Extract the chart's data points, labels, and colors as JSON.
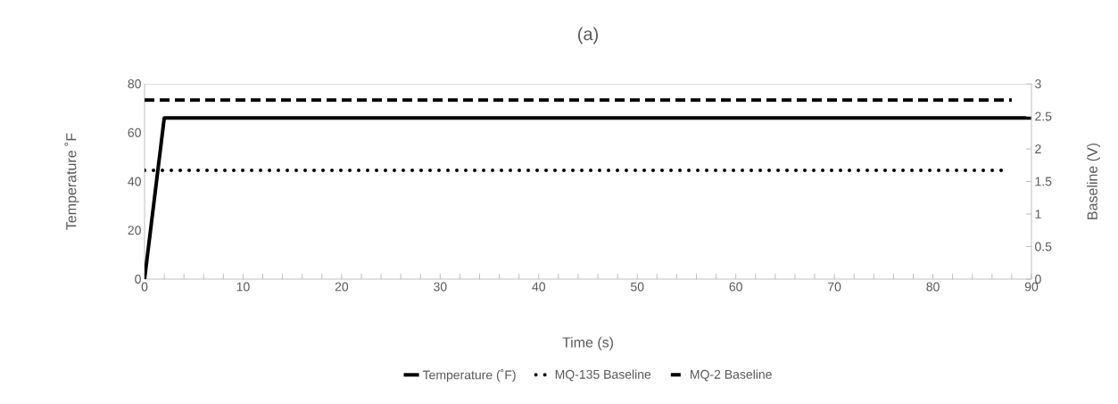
{
  "chart_data": {
    "type": "line",
    "title": "(a)",
    "xlabel": "Time (s)",
    "ylabel": "Temperature ˚F",
    "y2label": "Baseline (V)",
    "xlim": [
      0,
      90
    ],
    "ylim": [
      0,
      80
    ],
    "y2lim": [
      0,
      3
    ],
    "xticks": [
      0,
      {
        "value": 2,
        "label": null
      },
      {
        "value": 4,
        "label": null
      },
      {
        "value": 6,
        "label": null
      },
      {
        "value": 8,
        "label": null
      },
      10,
      {
        "value": 12,
        "label": null
      },
      {
        "value": 14,
        "label": null
      },
      {
        "value": 16,
        "label": null
      },
      {
        "value": 18,
        "label": null
      },
      20,
      {
        "value": 22,
        "label": null
      },
      {
        "value": 24,
        "label": null
      },
      {
        "value": 26,
        "label": null
      },
      {
        "value": 28,
        "label": null
      },
      30,
      {
        "value": 32,
        "label": null
      },
      {
        "value": 34,
        "label": null
      },
      {
        "value": 36,
        "label": null
      },
      {
        "value": 38,
        "label": null
      },
      40,
      {
        "value": 42,
        "label": null
      },
      {
        "value": 44,
        "label": null
      },
      {
        "value": 46,
        "label": null
      },
      {
        "value": 48,
        "label": null
      },
      50,
      {
        "value": 52,
        "label": null
      },
      {
        "value": 54,
        "label": null
      },
      {
        "value": 56,
        "label": null
      },
      {
        "value": 58,
        "label": null
      },
      60,
      {
        "value": 62,
        "label": null
      },
      {
        "value": 64,
        "label": null
      },
      {
        "value": 66,
        "label": null
      },
      {
        "value": 68,
        "label": null
      },
      70,
      {
        "value": 72,
        "label": null
      },
      {
        "value": 74,
        "label": null
      },
      {
        "value": 76,
        "label": null
      },
      {
        "value": 78,
        "label": null
      },
      80,
      {
        "value": 82,
        "label": null
      },
      {
        "value": 84,
        "label": null
      },
      {
        "value": 86,
        "label": null
      },
      {
        "value": 88,
        "label": null
      },
      90
    ],
    "yticks": [
      0,
      20,
      40,
      60,
      80
    ],
    "y2ticks": [
      0,
      0.5,
      1,
      1.5,
      2,
      2.5,
      3
    ],
    "legend": "bottom",
    "marker": "none",
    "series": [
      {
        "name": "Temperature (˚F)",
        "color": "#000000",
        "line_style": "solid",
        "x": [
          0,
          2,
          90
        ],
        "values": [
          0,
          66,
          66
        ]
      },
      {
        "name": "MQ-135 Baseline",
        "color": "#000000",
        "line_style": "dotted",
        "axis": "y2",
        "x": [
          0,
          87
        ],
        "values": [
          1.67,
          1.67
        ]
      },
      {
        "name": "MQ-2 Baseline",
        "color": "#000000",
        "line_style": "dashed",
        "axis": "y2",
        "x": [
          0,
          88
        ],
        "values": [
          2.75,
          2.75
        ]
      }
    ]
  }
}
